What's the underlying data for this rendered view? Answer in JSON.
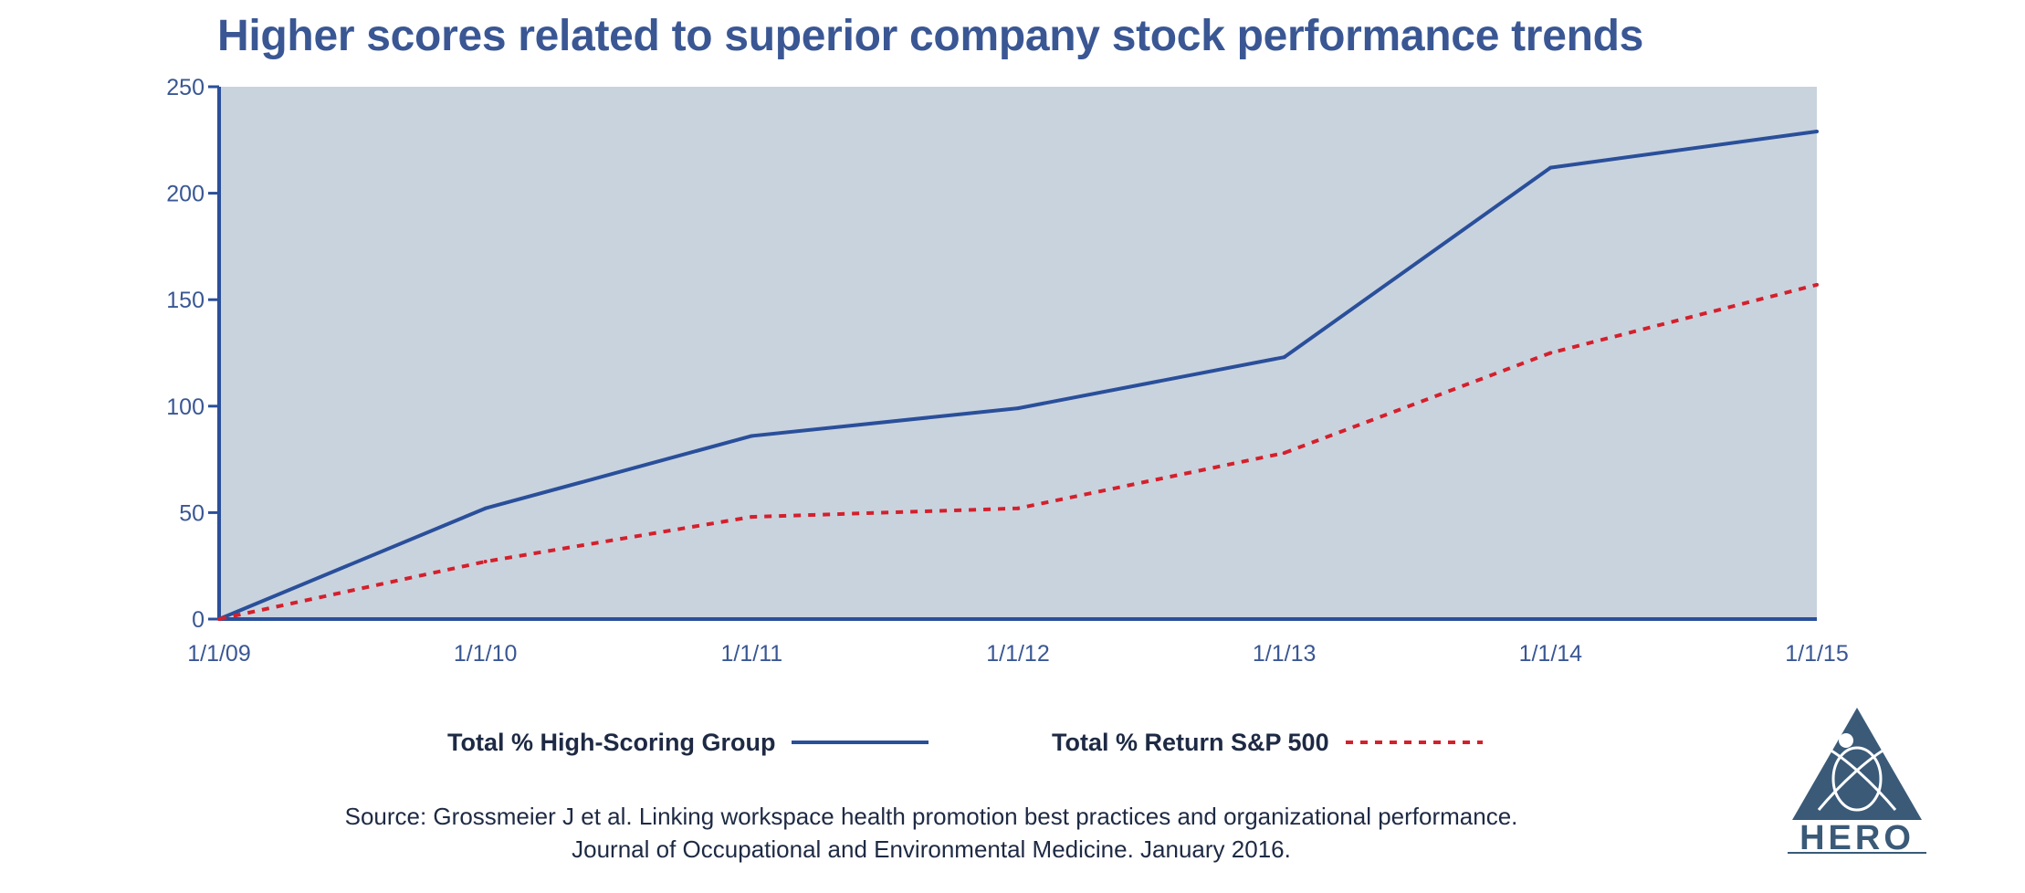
{
  "chart_data": {
    "type": "line",
    "title": "Higher scores related to superior company stock performance trends",
    "xlabel": "",
    "ylabel": "",
    "categories": [
      "1/1/09",
      "1/1/10",
      "1/1/11",
      "1/1/12",
      "1/1/13",
      "1/1/14",
      "1/1/15"
    ],
    "y_ticks": [
      "0",
      "50",
      "100",
      "150",
      "200",
      "250"
    ],
    "ylim": [
      0,
      250
    ],
    "grid": false,
    "legend_position": "bottom",
    "series": [
      {
        "name": "Total % High-Scoring Group",
        "values": [
          0,
          52,
          86,
          99,
          123,
          212,
          229
        ],
        "color": "#2a4f9a",
        "style": "solid"
      },
      {
        "name": "Total % Return S&P 500",
        "values": [
          0,
          27,
          48,
          52,
          78,
          125,
          157
        ],
        "color": "#d4202c",
        "style": "dotted"
      }
    ],
    "plot_background": "#c9d3de"
  },
  "source": {
    "line1": "Source: Grossmeier J et al. Linking workspace health promotion best practices and organizational performance.",
    "line2": "Journal of Occupational and Environmental Medicine. January 2016."
  },
  "logo": {
    "text": "HERO",
    "color": "#3a5a78"
  }
}
